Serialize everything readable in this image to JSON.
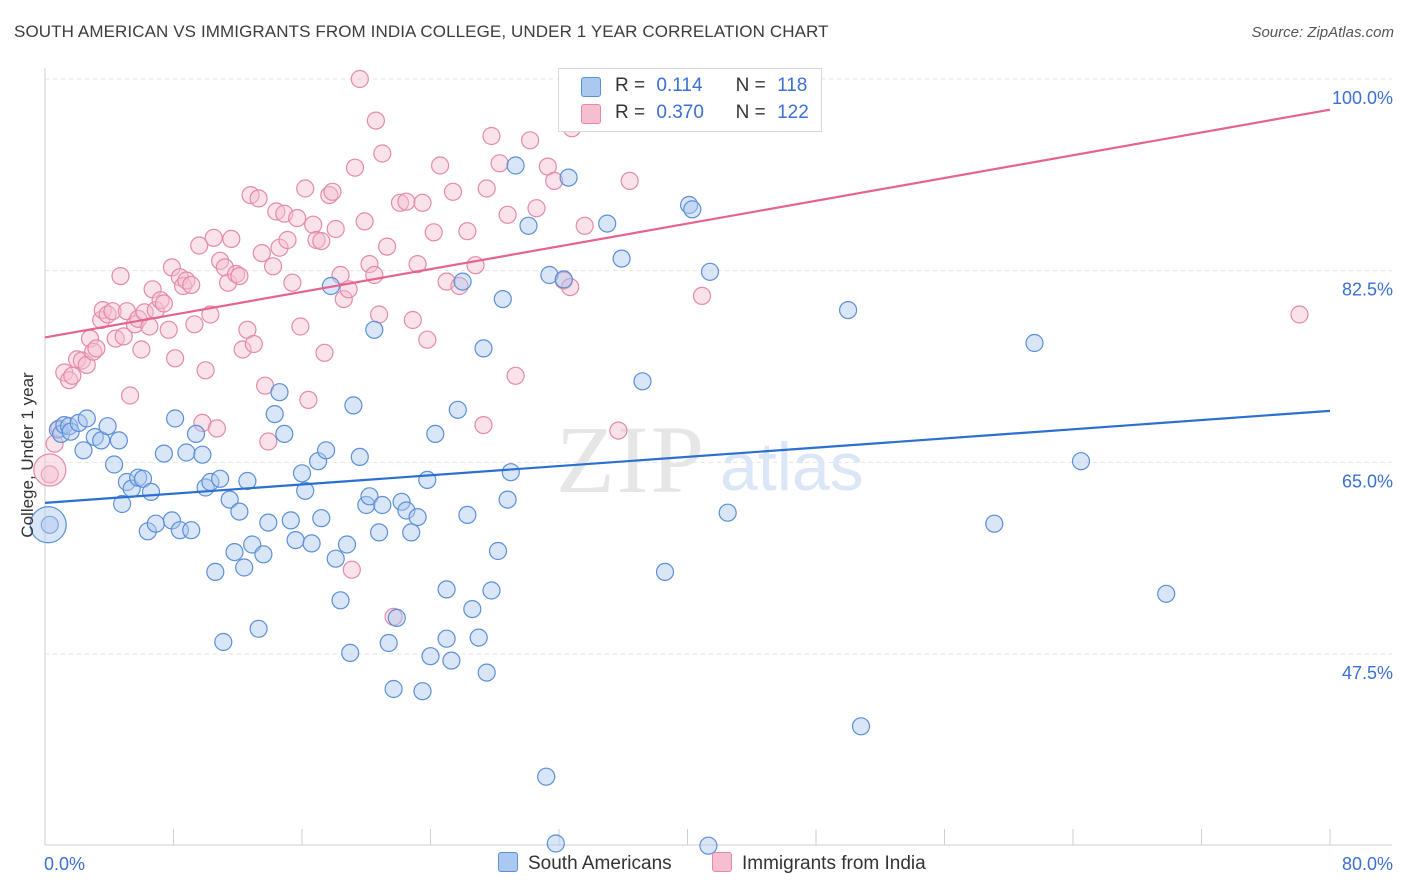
{
  "title": "SOUTH AMERICAN VS IMMIGRANTS FROM INDIA COLLEGE, UNDER 1 YEAR CORRELATION CHART",
  "source": "Source: ZipAtlas.com",
  "watermark": {
    "zip": "ZIP",
    "atlas": "atlas"
  },
  "colors": {
    "blue_fill": "#aac8f0",
    "blue_stroke": "#5b8fd8",
    "blue_line": "#2a6fd1",
    "pink_fill": "#f5bfd0",
    "pink_stroke": "#e48aa8",
    "pink_line": "#e5648f",
    "tick_label": "#3b6fd4",
    "grid": "#e3e3e3"
  },
  "legend": {
    "rows": [
      {
        "r_label": "R =",
        "r_value": "0.114",
        "n_label": "N =",
        "n_value": "118",
        "color": "#aac8f0",
        "stroke": "#5b8fd8"
      },
      {
        "r_label": "R =",
        "r_value": "0.370",
        "n_label": "N =",
        "n_value": "122",
        "color": "#f5bfd0",
        "stroke": "#e48aa8"
      }
    ]
  },
  "bottom_legend": [
    {
      "label": "South Americans",
      "color": "#aac8f0",
      "stroke": "#5b8fd8"
    },
    {
      "label": "Immigrants from India",
      "color": "#f5bfd0",
      "stroke": "#e48aa8"
    }
  ],
  "chart_data": {
    "type": "scatter",
    "title": "SOUTH AMERICAN VS IMMIGRANTS FROM INDIA COLLEGE, UNDER 1 YEAR CORRELATION CHART",
    "xlabel": "",
    "ylabel": "College, Under 1 year",
    "xlim": [
      0,
      80
    ],
    "ylim": [
      31,
      103
    ],
    "x_tick_labels": [
      {
        "value": 0,
        "label": "0.0%"
      },
      {
        "value": 80,
        "label": "80.0%"
      }
    ],
    "y_tick_labels": [
      {
        "value": 47.5,
        "label": "47.5%"
      },
      {
        "value": 65.0,
        "label": "65.0%"
      },
      {
        "value": 82.5,
        "label": "82.5%"
      },
      {
        "value": 100.0,
        "label": "100.0%"
      }
    ],
    "grid": true,
    "legend_position": "top-center",
    "series": [
      {
        "name": "South Americans",
        "trend": {
          "x": [
            0,
            80
          ],
          "y": [
            61.3,
            69.7
          ]
        },
        "points": [
          [
            0.3,
            59.3
          ],
          [
            0.8,
            68.0
          ],
          [
            1.0,
            67.6
          ],
          [
            1.2,
            68.4
          ],
          [
            1.5,
            68.3
          ],
          [
            1.6,
            67.8
          ],
          [
            2.1,
            68.6
          ],
          [
            2.4,
            66.1
          ],
          [
            2.6,
            69.0
          ],
          [
            3.1,
            67.3
          ],
          [
            3.5,
            67.0
          ],
          [
            3.9,
            68.3
          ],
          [
            4.3,
            64.8
          ],
          [
            4.6,
            67.0
          ],
          [
            4.8,
            61.2
          ],
          [
            5.1,
            63.2
          ],
          [
            5.4,
            62.6
          ],
          [
            5.8,
            63.6
          ],
          [
            6.1,
            63.5
          ],
          [
            6.4,
            58.7
          ],
          [
            6.6,
            62.3
          ],
          [
            6.9,
            59.4
          ],
          [
            7.4,
            65.8
          ],
          [
            7.9,
            59.7
          ],
          [
            8.1,
            69.0
          ],
          [
            8.4,
            58.8
          ],
          [
            8.8,
            65.9
          ],
          [
            9.1,
            58.8
          ],
          [
            9.4,
            67.6
          ],
          [
            9.8,
            65.7
          ],
          [
            10.0,
            62.7
          ],
          [
            10.3,
            63.2
          ],
          [
            10.6,
            55.0
          ],
          [
            10.9,
            63.5
          ],
          [
            11.1,
            48.6
          ],
          [
            11.5,
            61.6
          ],
          [
            11.8,
            56.8
          ],
          [
            12.1,
            60.5
          ],
          [
            12.4,
            55.4
          ],
          [
            12.6,
            63.3
          ],
          [
            12.9,
            57.5
          ],
          [
            13.3,
            49.8
          ],
          [
            13.6,
            56.6
          ],
          [
            13.9,
            59.5
          ],
          [
            14.3,
            69.4
          ],
          [
            14.6,
            71.4
          ],
          [
            14.9,
            67.6
          ],
          [
            15.3,
            59.7
          ],
          [
            15.6,
            57.9
          ],
          [
            16.0,
            64.0
          ],
          [
            16.2,
            62.4
          ],
          [
            16.6,
            57.6
          ],
          [
            17.0,
            65.1
          ],
          [
            17.2,
            59.9
          ],
          [
            17.5,
            66.1
          ],
          [
            17.8,
            81.1
          ],
          [
            18.1,
            56.2
          ],
          [
            18.4,
            52.4
          ],
          [
            18.8,
            57.5
          ],
          [
            19.0,
            47.6
          ],
          [
            19.2,
            70.2
          ],
          [
            19.6,
            65.5
          ],
          [
            20.0,
            61.1
          ],
          [
            20.2,
            61.9
          ],
          [
            20.5,
            77.1
          ],
          [
            20.8,
            58.6
          ],
          [
            21.0,
            61.1
          ],
          [
            21.4,
            48.5
          ],
          [
            21.7,
            44.3
          ],
          [
            21.9,
            50.8
          ],
          [
            22.2,
            61.4
          ],
          [
            22.5,
            60.6
          ],
          [
            22.8,
            58.6
          ],
          [
            23.2,
            60.0
          ],
          [
            23.5,
            44.1
          ],
          [
            23.8,
            63.4
          ],
          [
            24.0,
            47.3
          ],
          [
            24.3,
            67.6
          ],
          [
            25.0,
            53.4
          ],
          [
            25.0,
            48.9
          ],
          [
            25.3,
            46.9
          ],
          [
            25.7,
            69.8
          ],
          [
            26.0,
            81.5
          ],
          [
            26.3,
            60.2
          ],
          [
            26.6,
            51.6
          ],
          [
            27.0,
            49.0
          ],
          [
            27.3,
            75.4
          ],
          [
            27.5,
            45.8
          ],
          [
            27.8,
            53.3
          ],
          [
            28.2,
            56.9
          ],
          [
            28.5,
            79.9
          ],
          [
            28.8,
            61.6
          ],
          [
            29.0,
            64.1
          ],
          [
            29.3,
            92.1
          ],
          [
            30.1,
            86.6
          ],
          [
            31.2,
            36.3
          ],
          [
            31.4,
            82.1
          ],
          [
            31.8,
            30.2
          ],
          [
            32.3,
            81.7
          ],
          [
            32.6,
            91.0
          ],
          [
            35.0,
            86.8
          ],
          [
            35.9,
            83.6
          ],
          [
            37.2,
            72.4
          ],
          [
            38.6,
            55.0
          ],
          [
            41.3,
            30.0
          ],
          [
            40.1,
            88.5
          ],
          [
            40.3,
            88.1
          ],
          [
            41.4,
            82.4
          ],
          [
            42.5,
            60.4
          ],
          [
            50.0,
            78.9
          ],
          [
            50.8,
            40.9
          ],
          [
            61.6,
            75.9
          ],
          [
            59.1,
            59.4
          ],
          [
            69.8,
            53.0
          ],
          [
            64.5,
            65.1
          ]
        ]
      },
      {
        "name": "Immigrants from India",
        "trend": {
          "x": [
            0,
            80
          ],
          "y": [
            76.4,
            97.2
          ]
        },
        "points": [
          [
            0.3,
            63.9
          ],
          [
            0.6,
            66.7
          ],
          [
            0.9,
            68.1
          ],
          [
            1.2,
            73.2
          ],
          [
            1.5,
            72.5
          ],
          [
            1.7,
            72.9
          ],
          [
            2.0,
            74.4
          ],
          [
            2.3,
            74.3
          ],
          [
            2.6,
            73.9
          ],
          [
            2.8,
            76.3
          ],
          [
            3.0,
            75.1
          ],
          [
            3.2,
            75.4
          ],
          [
            3.5,
            78.0
          ],
          [
            3.6,
            78.9
          ],
          [
            3.9,
            78.5
          ],
          [
            4.2,
            78.8
          ],
          [
            4.4,
            76.3
          ],
          [
            4.7,
            82.0
          ],
          [
            4.9,
            76.5
          ],
          [
            5.1,
            78.8
          ],
          [
            5.3,
            71.1
          ],
          [
            5.6,
            77.6
          ],
          [
            5.8,
            78.1
          ],
          [
            6.0,
            75.3
          ],
          [
            6.2,
            78.7
          ],
          [
            6.5,
            77.4
          ],
          [
            6.7,
            80.8
          ],
          [
            6.9,
            78.9
          ],
          [
            7.2,
            79.8
          ],
          [
            7.4,
            79.5
          ],
          [
            7.7,
            77.1
          ],
          [
            7.9,
            82.8
          ],
          [
            8.1,
            74.5
          ],
          [
            8.4,
            81.9
          ],
          [
            8.6,
            81.1
          ],
          [
            8.8,
            81.6
          ],
          [
            9.1,
            81.2
          ],
          [
            9.3,
            77.6
          ],
          [
            9.6,
            84.8
          ],
          [
            9.8,
            68.6
          ],
          [
            10.0,
            73.4
          ],
          [
            10.3,
            78.5
          ],
          [
            10.5,
            85.5
          ],
          [
            10.7,
            68.1
          ],
          [
            10.9,
            83.4
          ],
          [
            11.2,
            82.8
          ],
          [
            11.4,
            81.4
          ],
          [
            11.6,
            85.4
          ],
          [
            11.9,
            82.2
          ],
          [
            12.1,
            82.0
          ],
          [
            12.3,
            75.3
          ],
          [
            12.6,
            77.1
          ],
          [
            12.8,
            89.4
          ],
          [
            13.0,
            75.8
          ],
          [
            13.3,
            89.1
          ],
          [
            13.5,
            84.1
          ],
          [
            13.7,
            72.0
          ],
          [
            13.9,
            66.9
          ],
          [
            14.2,
            82.9
          ],
          [
            14.4,
            87.9
          ],
          [
            14.6,
            84.6
          ],
          [
            14.9,
            87.7
          ],
          [
            15.1,
            85.3
          ],
          [
            15.4,
            81.4
          ],
          [
            15.7,
            87.3
          ],
          [
            15.9,
            77.4
          ],
          [
            16.2,
            90.0
          ],
          [
            16.4,
            70.7
          ],
          [
            16.7,
            86.7
          ],
          [
            16.9,
            85.3
          ],
          [
            17.2,
            85.2
          ],
          [
            17.4,
            75.0
          ],
          [
            17.7,
            89.4
          ],
          [
            17.9,
            89.7
          ],
          [
            18.1,
            86.3
          ],
          [
            18.4,
            82.1
          ],
          [
            18.6,
            79.9
          ],
          [
            18.9,
            80.8
          ],
          [
            19.1,
            55.2
          ],
          [
            19.3,
            91.9
          ],
          [
            19.6,
            100.0
          ],
          [
            19.9,
            87.0
          ],
          [
            20.2,
            83.1
          ],
          [
            20.5,
            82.1
          ],
          [
            20.8,
            78.5
          ],
          [
            21.0,
            93.2
          ],
          [
            21.3,
            84.7
          ],
          [
            21.7,
            50.9
          ],
          [
            22.1,
            88.7
          ],
          [
            22.5,
            88.8
          ],
          [
            22.9,
            78.0
          ],
          [
            23.2,
            83.1
          ],
          [
            23.5,
            88.7
          ],
          [
            23.8,
            76.2
          ],
          [
            24.2,
            86.0
          ],
          [
            24.6,
            92.1
          ],
          [
            25.0,
            81.5
          ],
          [
            25.4,
            89.7
          ],
          [
            25.8,
            81.1
          ],
          [
            26.3,
            86.1
          ],
          [
            26.8,
            83.0
          ],
          [
            27.3,
            68.4
          ],
          [
            27.8,
            94.8
          ],
          [
            28.3,
            92.3
          ],
          [
            28.8,
            87.6
          ],
          [
            29.3,
            72.9
          ],
          [
            30.2,
            94.4
          ],
          [
            30.6,
            88.2
          ],
          [
            31.3,
            92.0
          ],
          [
            31.7,
            90.7
          ],
          [
            32.3,
            81.6
          ],
          [
            32.7,
            81.0
          ],
          [
            33.6,
            86.6
          ],
          [
            35.7,
            67.9
          ],
          [
            36.4,
            90.7
          ],
          [
            40.9,
            80.2
          ],
          [
            27.5,
            90.0
          ],
          [
            20.6,
            96.2
          ],
          [
            32.8,
            95.5
          ],
          [
            78.1,
            78.5
          ]
        ]
      }
    ]
  }
}
